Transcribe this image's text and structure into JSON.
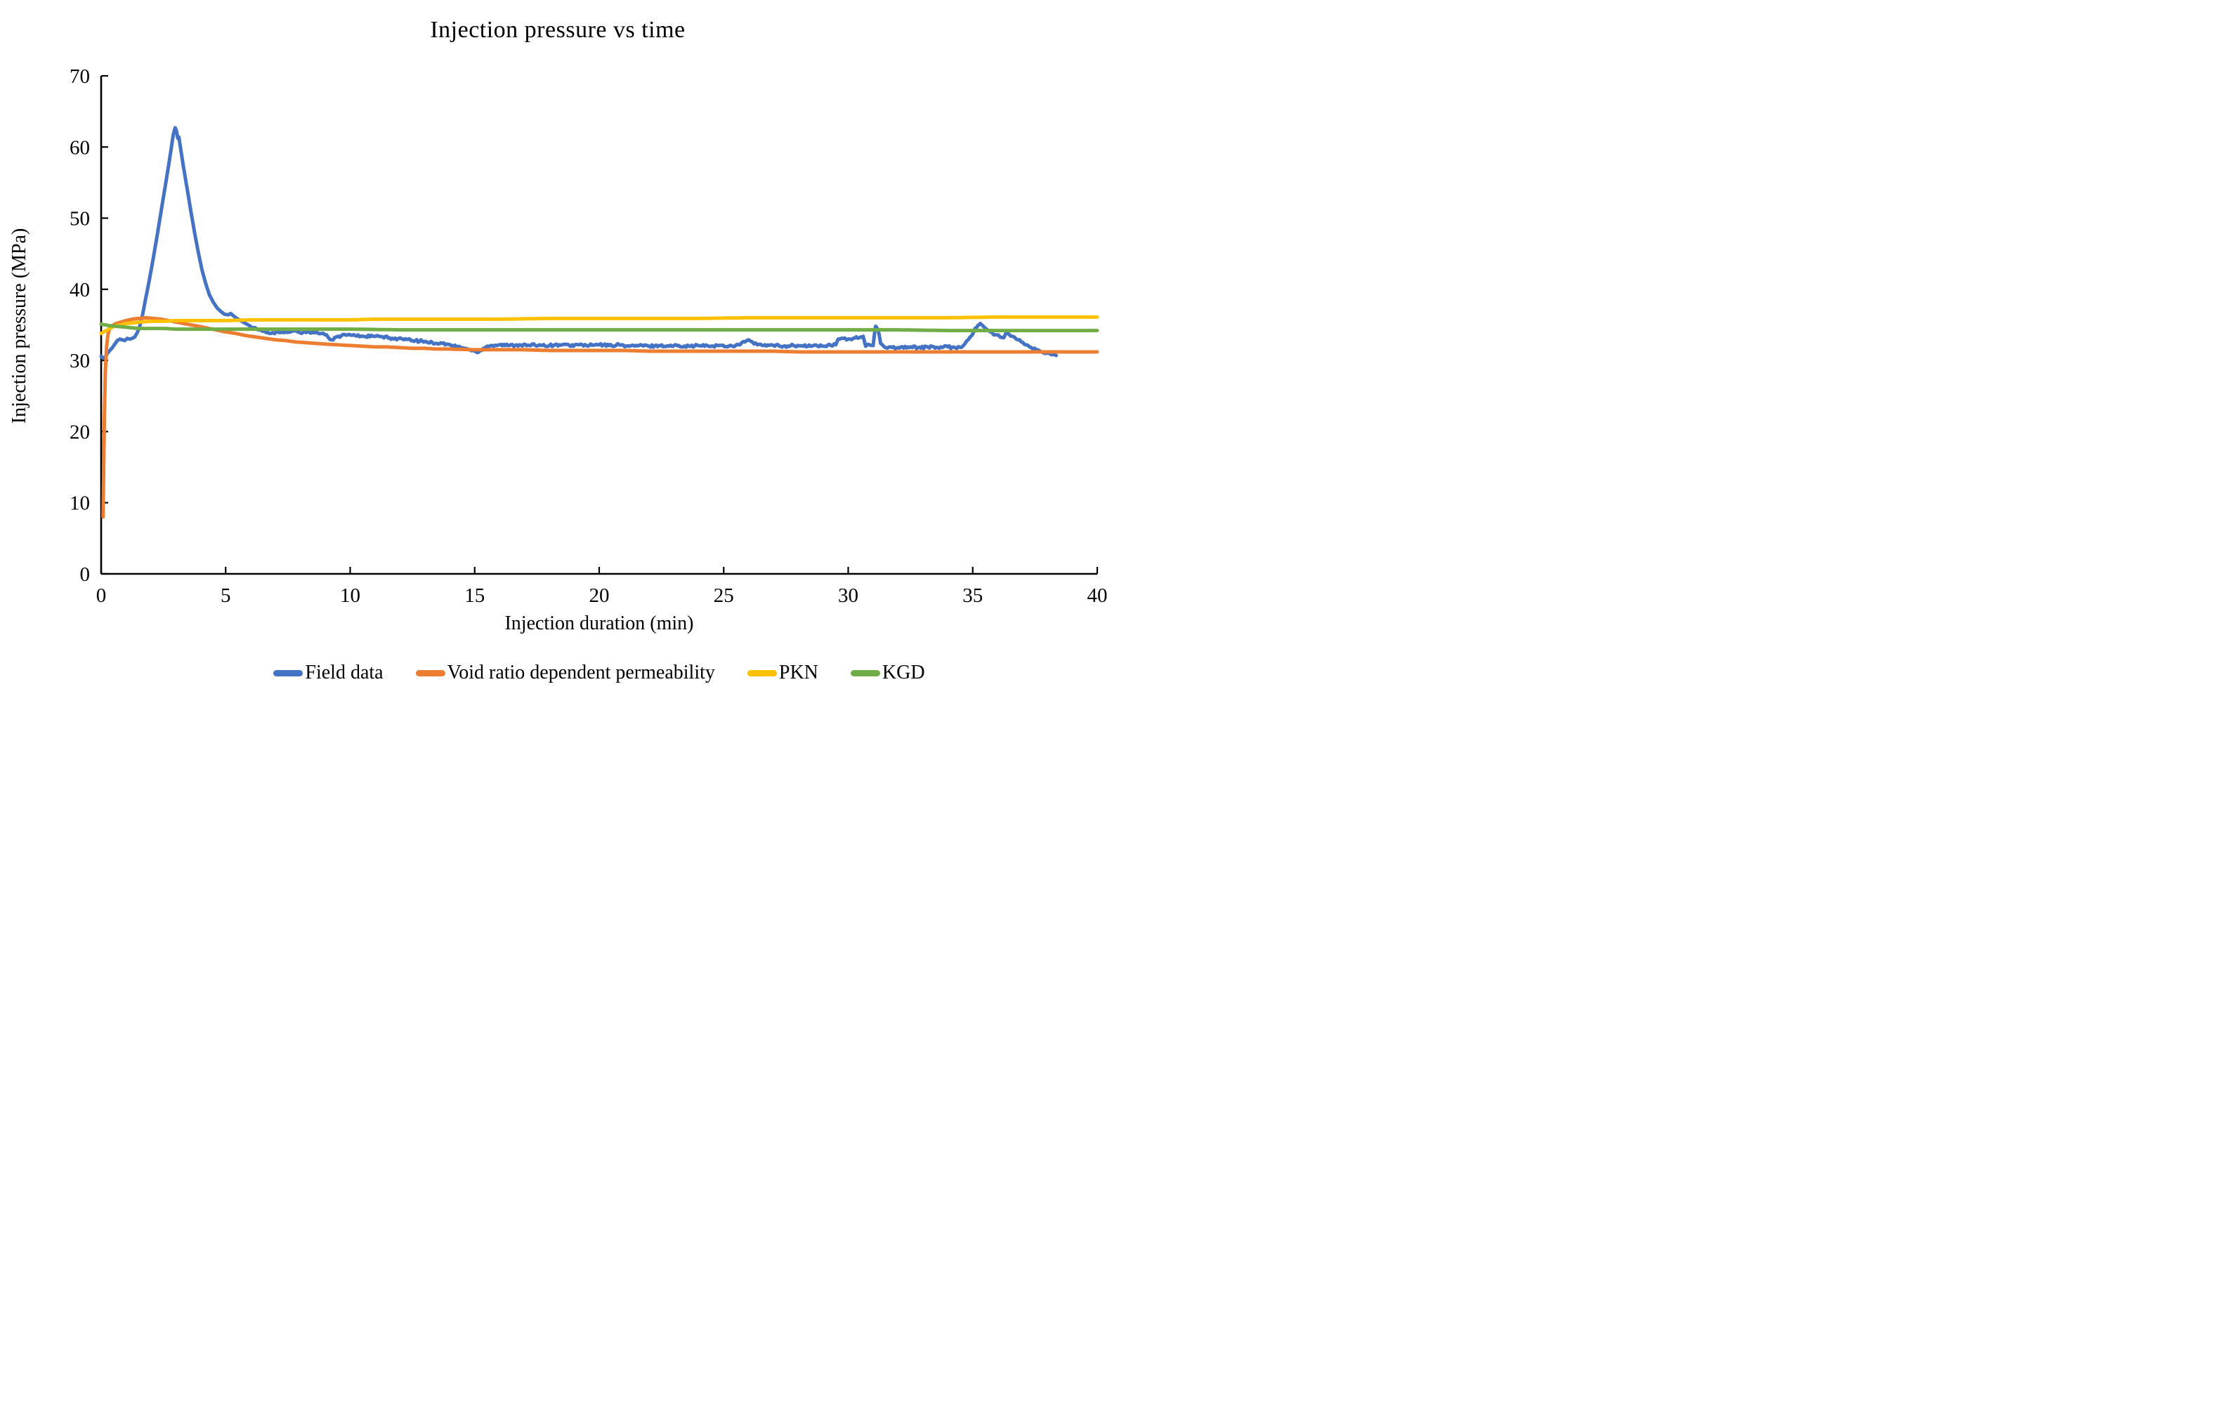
{
  "chart_data": {
    "type": "line",
    "title": "Injection pressure vs time",
    "xlabel": "Injection duration (min)",
    "ylabel": "Injection pressure (MPa)",
    "xlim": [
      0,
      40
    ],
    "ylim": [
      0,
      70
    ],
    "x_ticks": [
      0,
      5,
      10,
      15,
      20,
      25,
      30,
      35,
      40
    ],
    "y_ticks": [
      0,
      10,
      20,
      30,
      40,
      50,
      60,
      70
    ],
    "grid": false,
    "legend_position": "bottom",
    "axis_color": "#000000",
    "series": [
      {
        "name": "Field data",
        "color": "#4472C4",
        "noise": {
          "amplitude": 0.18,
          "from_x": 6
        },
        "points": [
          [
            0,
            30.6
          ],
          [
            0.08,
            30.3
          ],
          [
            0.15,
            30.4
          ],
          [
            0.25,
            31.0
          ],
          [
            0.35,
            31.4
          ],
          [
            0.45,
            31.8
          ],
          [
            0.55,
            32.3
          ],
          [
            0.65,
            32.8
          ],
          [
            0.75,
            33.0
          ],
          [
            0.85,
            32.9
          ],
          [
            0.95,
            32.8
          ],
          [
            1.05,
            33.1
          ],
          [
            1.15,
            33.0
          ],
          [
            1.25,
            33.1
          ],
          [
            1.35,
            33.3
          ],
          [
            1.45,
            33.9
          ],
          [
            1.55,
            34.8
          ],
          [
            1.65,
            36.2
          ],
          [
            1.75,
            38.0
          ],
          [
            1.85,
            39.8
          ],
          [
            1.95,
            41.6
          ],
          [
            2.1,
            44.5
          ],
          [
            2.25,
            47.6
          ],
          [
            2.4,
            50.8
          ],
          [
            2.55,
            54.0
          ],
          [
            2.7,
            57.2
          ],
          [
            2.8,
            59.5
          ],
          [
            2.9,
            61.8
          ],
          [
            2.97,
            62.7
          ],
          [
            3.02,
            62.3
          ],
          [
            3.08,
            61.2
          ],
          [
            3.12,
            61.4
          ],
          [
            3.2,
            59.6
          ],
          [
            3.3,
            57.3
          ],
          [
            3.45,
            54.2
          ],
          [
            3.6,
            51.0
          ],
          [
            3.75,
            48.0
          ],
          [
            3.9,
            45.2
          ],
          [
            4.05,
            42.7
          ],
          [
            4.2,
            40.8
          ],
          [
            4.35,
            39.2
          ],
          [
            4.5,
            38.2
          ],
          [
            4.65,
            37.4
          ],
          [
            4.8,
            36.9
          ],
          [
            4.95,
            36.5
          ],
          [
            5.1,
            36.4
          ],
          [
            5.2,
            36.6
          ],
          [
            5.3,
            36.3
          ],
          [
            5.45,
            35.9
          ],
          [
            5.6,
            35.6
          ],
          [
            5.75,
            35.3
          ],
          [
            5.9,
            35.0
          ],
          [
            6.1,
            34.6
          ],
          [
            6.3,
            34.3
          ],
          [
            6.5,
            34.1
          ],
          [
            6.7,
            33.9
          ],
          [
            6.9,
            33.9
          ],
          [
            7.1,
            34.0
          ],
          [
            7.35,
            33.9
          ],
          [
            7.6,
            34.0
          ],
          [
            7.85,
            34.1
          ],
          [
            8.1,
            33.9
          ],
          [
            8.35,
            34.0
          ],
          [
            8.6,
            33.9
          ],
          [
            8.85,
            33.8
          ],
          [
            9.05,
            33.6
          ],
          [
            9.25,
            32.9
          ],
          [
            9.45,
            33.3
          ],
          [
            9.65,
            33.5
          ],
          [
            9.9,
            33.6
          ],
          [
            10.2,
            33.5
          ],
          [
            10.5,
            33.4
          ],
          [
            10.9,
            33.4
          ],
          [
            11.3,
            33.3
          ],
          [
            11.7,
            33.1
          ],
          [
            12.1,
            33.0
          ],
          [
            12.5,
            32.8
          ],
          [
            12.9,
            32.7
          ],
          [
            13.3,
            32.5
          ],
          [
            13.7,
            32.4
          ],
          [
            14.1,
            32.1
          ],
          [
            14.5,
            31.8
          ],
          [
            14.8,
            31.5
          ],
          [
            15.05,
            31.2
          ],
          [
            15.2,
            31.3
          ],
          [
            15.35,
            31.7
          ],
          [
            15.5,
            32.0
          ],
          [
            15.7,
            32.1
          ],
          [
            16.0,
            32.2
          ],
          [
            16.4,
            32.1
          ],
          [
            16.8,
            32.2
          ],
          [
            17.2,
            32.1
          ],
          [
            17.6,
            32.2
          ],
          [
            18.0,
            32.1
          ],
          [
            18.4,
            32.2
          ],
          [
            18.8,
            32.1
          ],
          [
            19.2,
            32.2
          ],
          [
            19.6,
            32.1
          ],
          [
            20.0,
            32.2
          ],
          [
            20.4,
            32.1
          ],
          [
            20.8,
            32.2
          ],
          [
            21.2,
            32.0
          ],
          [
            21.6,
            32.1
          ],
          [
            22.0,
            32.0
          ],
          [
            22.4,
            32.1
          ],
          [
            22.8,
            32.0
          ],
          [
            23.2,
            32.1
          ],
          [
            23.6,
            32.0
          ],
          [
            24.0,
            32.1
          ],
          [
            24.4,
            32.0
          ],
          [
            24.8,
            32.1
          ],
          [
            25.2,
            32.0
          ],
          [
            25.6,
            32.2
          ],
          [
            25.85,
            32.6
          ],
          [
            26.0,
            32.9
          ],
          [
            26.15,
            32.6
          ],
          [
            26.35,
            32.2
          ],
          [
            26.6,
            32.1
          ],
          [
            27.0,
            32.1
          ],
          [
            27.4,
            32.0
          ],
          [
            27.8,
            32.1
          ],
          [
            28.2,
            32.0
          ],
          [
            28.6,
            32.1
          ],
          [
            29.0,
            32.0
          ],
          [
            29.3,
            32.1
          ],
          [
            29.5,
            32.2
          ],
          [
            29.6,
            33.0
          ],
          [
            29.8,
            33.1
          ],
          [
            30.0,
            33.0
          ],
          [
            30.2,
            33.1
          ],
          [
            30.45,
            33.2
          ],
          [
            30.6,
            33.4
          ],
          [
            30.7,
            32.0
          ],
          [
            30.85,
            32.2
          ],
          [
            31.0,
            32.1
          ],
          [
            31.1,
            34.8
          ],
          [
            31.2,
            34.3
          ],
          [
            31.3,
            32.4
          ],
          [
            31.45,
            31.9
          ],
          [
            31.7,
            31.9
          ],
          [
            32.0,
            31.8
          ],
          [
            32.4,
            31.9
          ],
          [
            32.8,
            31.8
          ],
          [
            33.2,
            31.9
          ],
          [
            33.6,
            31.8
          ],
          [
            34.0,
            31.9
          ],
          [
            34.3,
            31.8
          ],
          [
            34.6,
            32.0
          ],
          [
            34.75,
            32.7
          ],
          [
            34.9,
            33.3
          ],
          [
            35.05,
            34.1
          ],
          [
            35.2,
            34.9
          ],
          [
            35.3,
            35.2
          ],
          [
            35.4,
            34.9
          ],
          [
            35.55,
            34.4
          ],
          [
            35.7,
            34.0
          ],
          [
            35.9,
            33.6
          ],
          [
            36.1,
            33.3
          ],
          [
            36.25,
            33.2
          ],
          [
            36.35,
            33.9
          ],
          [
            36.45,
            33.7
          ],
          [
            36.6,
            33.4
          ],
          [
            36.75,
            33.0
          ],
          [
            36.95,
            32.6
          ],
          [
            37.15,
            32.2
          ],
          [
            37.35,
            31.8
          ],
          [
            37.55,
            31.5
          ],
          [
            37.75,
            31.2
          ],
          [
            37.95,
            31.0
          ],
          [
            38.2,
            30.8
          ],
          [
            38.35,
            30.7
          ]
        ]
      },
      {
        "name": "Void ratio dependent permeability",
        "color": "#ED7D31",
        "noise": null,
        "points": [
          [
            0.08,
            8.0
          ],
          [
            0.1,
            14.0
          ],
          [
            0.13,
            22.0
          ],
          [
            0.17,
            28.5
          ],
          [
            0.22,
            32.0
          ],
          [
            0.28,
            33.8
          ],
          [
            0.35,
            34.5
          ],
          [
            0.45,
            34.9
          ],
          [
            0.6,
            35.2
          ],
          [
            0.8,
            35.4
          ],
          [
            1.0,
            35.6
          ],
          [
            1.25,
            35.8
          ],
          [
            1.5,
            35.9
          ],
          [
            1.8,
            36.0
          ],
          [
            2.1,
            35.9
          ],
          [
            2.4,
            35.8
          ],
          [
            2.7,
            35.6
          ],
          [
            3.0,
            35.4
          ],
          [
            3.3,
            35.2
          ],
          [
            3.6,
            35.0
          ],
          [
            3.9,
            34.8
          ],
          [
            4.2,
            34.6
          ],
          [
            4.6,
            34.3
          ],
          [
            5.0,
            34.0
          ],
          [
            5.4,
            33.8
          ],
          [
            5.8,
            33.5
          ],
          [
            6.2,
            33.3
          ],
          [
            6.6,
            33.1
          ],
          [
            7.0,
            32.9
          ],
          [
            7.4,
            32.8
          ],
          [
            7.8,
            32.6
          ],
          [
            8.2,
            32.5
          ],
          [
            8.6,
            32.4
          ],
          [
            9.0,
            32.3
          ],
          [
            9.5,
            32.2
          ],
          [
            10.0,
            32.1
          ],
          [
            10.5,
            32.0
          ],
          [
            11.0,
            31.9
          ],
          [
            11.5,
            31.9
          ],
          [
            12.0,
            31.8
          ],
          [
            12.5,
            31.7
          ],
          [
            13.0,
            31.7
          ],
          [
            13.5,
            31.6
          ],
          [
            14.0,
            31.6
          ],
          [
            15.0,
            31.5
          ],
          [
            16.0,
            31.5
          ],
          [
            17.0,
            31.5
          ],
          [
            18.0,
            31.4
          ],
          [
            19.0,
            31.4
          ],
          [
            20.0,
            31.4
          ],
          [
            21.0,
            31.4
          ],
          [
            22.0,
            31.3
          ],
          [
            23.0,
            31.3
          ],
          [
            24.0,
            31.3
          ],
          [
            25.0,
            31.3
          ],
          [
            26.0,
            31.3
          ],
          [
            27.0,
            31.3
          ],
          [
            28.0,
            31.2
          ],
          [
            29.0,
            31.2
          ],
          [
            30.0,
            31.2
          ],
          [
            31.0,
            31.2
          ],
          [
            32.0,
            31.2
          ],
          [
            33.0,
            31.2
          ],
          [
            34.0,
            31.2
          ],
          [
            35.0,
            31.2
          ],
          [
            36.0,
            31.2
          ],
          [
            37.0,
            31.2
          ],
          [
            38.0,
            31.2
          ],
          [
            39.0,
            31.2
          ],
          [
            40.0,
            31.2
          ]
        ]
      },
      {
        "name": "PKN",
        "color": "#FFC000",
        "noise": null,
        "points": [
          [
            0,
            33.8
          ],
          [
            0.2,
            34.2
          ],
          [
            0.4,
            34.6
          ],
          [
            0.6,
            34.9
          ],
          [
            0.8,
            35.0
          ],
          [
            1.0,
            35.2
          ],
          [
            1.3,
            35.3
          ],
          [
            1.6,
            35.4
          ],
          [
            2.0,
            35.5
          ],
          [
            2.5,
            35.5
          ],
          [
            3.0,
            35.6
          ],
          [
            4.0,
            35.6
          ],
          [
            5.0,
            35.6
          ],
          [
            6.0,
            35.7
          ],
          [
            7.0,
            35.7
          ],
          [
            8.0,
            35.7
          ],
          [
            9.0,
            35.7
          ],
          [
            10.0,
            35.7
          ],
          [
            11.0,
            35.8
          ],
          [
            12.0,
            35.8
          ],
          [
            14.0,
            35.8
          ],
          [
            16.0,
            35.8
          ],
          [
            18.0,
            35.9
          ],
          [
            20.0,
            35.9
          ],
          [
            22.0,
            35.9
          ],
          [
            24.0,
            35.9
          ],
          [
            26.0,
            36.0
          ],
          [
            28.0,
            36.0
          ],
          [
            30.0,
            36.0
          ],
          [
            32.0,
            36.0
          ],
          [
            34.0,
            36.0
          ],
          [
            36.0,
            36.1
          ],
          [
            38.0,
            36.1
          ],
          [
            40.0,
            36.1
          ]
        ]
      },
      {
        "name": "KGD",
        "color": "#70AD47",
        "noise": null,
        "points": [
          [
            0,
            35.1
          ],
          [
            0.3,
            34.9
          ],
          [
            0.6,
            34.8
          ],
          [
            0.9,
            34.7
          ],
          [
            1.2,
            34.6
          ],
          [
            1.5,
            34.5
          ],
          [
            2.0,
            34.5
          ],
          [
            2.5,
            34.5
          ],
          [
            3.0,
            34.4
          ],
          [
            4.0,
            34.4
          ],
          [
            5.0,
            34.4
          ],
          [
            6.0,
            34.4
          ],
          [
            8.0,
            34.4
          ],
          [
            10.0,
            34.4
          ],
          [
            12.0,
            34.3
          ],
          [
            14.0,
            34.3
          ],
          [
            16.0,
            34.3
          ],
          [
            18.0,
            34.3
          ],
          [
            20.0,
            34.3
          ],
          [
            22.0,
            34.3
          ],
          [
            24.0,
            34.3
          ],
          [
            26.0,
            34.3
          ],
          [
            28.0,
            34.3
          ],
          [
            30.0,
            34.3
          ],
          [
            32.0,
            34.3
          ],
          [
            34.0,
            34.2
          ],
          [
            36.0,
            34.2
          ],
          [
            38.0,
            34.2
          ],
          [
            40.0,
            34.2
          ]
        ]
      }
    ]
  }
}
